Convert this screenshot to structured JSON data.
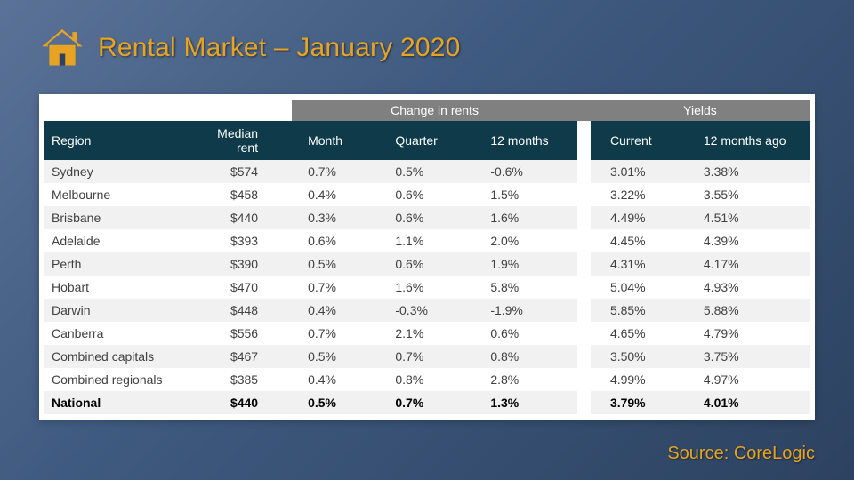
{
  "title": "Rental Market – January 2020",
  "source": "Source: CoreLogic",
  "icon_color": "#e6a422",
  "table": {
    "group_headers": {
      "change": "Change in rents",
      "yields": "Yields"
    },
    "columns": {
      "region": "Region",
      "median": "Median rent",
      "month": "Month",
      "quarter": "Quarter",
      "twelve": "12 months",
      "ycurrent": "Current",
      "yago": "12 months ago"
    },
    "rows": [
      {
        "region": "Sydney",
        "median": "$574",
        "month": "0.7%",
        "quarter": "0.5%",
        "twelve": "-0.6%",
        "ycurrent": "3.01%",
        "yago": "3.38%",
        "bold": false
      },
      {
        "region": "Melbourne",
        "median": "$458",
        "month": "0.4%",
        "quarter": "0.6%",
        "twelve": "1.5%",
        "ycurrent": "3.22%",
        "yago": "3.55%",
        "bold": false
      },
      {
        "region": "Brisbane",
        "median": "$440",
        "month": "0.3%",
        "quarter": "0.6%",
        "twelve": "1.6%",
        "ycurrent": "4.49%",
        "yago": "4.51%",
        "bold": false
      },
      {
        "region": "Adelaide",
        "median": "$393",
        "month": "0.6%",
        "quarter": "1.1%",
        "twelve": "2.0%",
        "ycurrent": "4.45%",
        "yago": "4.39%",
        "bold": false
      },
      {
        "region": "Perth",
        "median": "$390",
        "month": "0.5%",
        "quarter": "0.6%",
        "twelve": "1.9%",
        "ycurrent": "4.31%",
        "yago": "4.17%",
        "bold": false
      },
      {
        "region": "Hobart",
        "median": "$470",
        "month": "0.7%",
        "quarter": "1.6%",
        "twelve": "5.8%",
        "ycurrent": "5.04%",
        "yago": "4.93%",
        "bold": false
      },
      {
        "region": "Darwin",
        "median": "$448",
        "month": "0.4%",
        "quarter": "-0.3%",
        "twelve": "-1.9%",
        "ycurrent": "5.85%",
        "yago": "5.88%",
        "bold": false
      },
      {
        "region": "Canberra",
        "median": "$556",
        "month": "0.7%",
        "quarter": "2.1%",
        "twelve": "0.6%",
        "ycurrent": "4.65%",
        "yago": "4.79%",
        "bold": false
      },
      {
        "region": "Combined capitals",
        "median": "$467",
        "month": "0.5%",
        "quarter": "0.7%",
        "twelve": "0.8%",
        "ycurrent": "3.50%",
        "yago": "3.75%",
        "bold": false
      },
      {
        "region": "Combined regionals",
        "median": "$385",
        "month": "0.4%",
        "quarter": "0.8%",
        "twelve": "2.8%",
        "ycurrent": "4.99%",
        "yago": "4.97%",
        "bold": false
      },
      {
        "region": "National",
        "median": "$440",
        "month": "0.5%",
        "quarter": "0.7%",
        "twelve": "1.3%",
        "ycurrent": "3.79%",
        "yago": "4.01%",
        "bold": true
      }
    ],
    "colors": {
      "group_header_bg": "#808080",
      "col_header_bg": "#0e3a4a",
      "header_text": "#ffffff",
      "row_alt_bg": "#f1f1f1",
      "row_bg": "#ffffff",
      "text": "#404040"
    }
  }
}
